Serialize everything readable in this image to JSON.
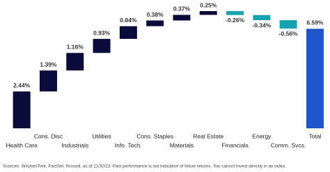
{
  "chart_data": {
    "type": "waterfall",
    "categories": [
      "Health Care",
      "Cons. Disc",
      "Industrials",
      "Utilities",
      "Info. Tech.",
      "Cons. Staples",
      "Materials",
      "Real Estate",
      "Financials",
      "Energy",
      "Comm. Svcs.",
      "Total"
    ],
    "values": [
      2.44,
      1.39,
      1.16,
      0.93,
      0.84,
      0.38,
      0.37,
      0.25,
      -0.26,
      -0.34,
      -0.56,
      6.59
    ],
    "value_labels": [
      "2.44%",
      "1.39%",
      "1.16%",
      "0.93%",
      "0.84%",
      "0.38%",
      "0.37%",
      "0.25%",
      "-0.26%",
      "-0.34%",
      "-0.56%",
      "6.59%"
    ],
    "colors": {
      "increase": "#0b0b3b",
      "decrease": "#17a2b1",
      "total": "#1f56c9"
    },
    "source": "Sources: WisdomTree, FactSet, Russell, as of 11/30/23. Past performance is not indicative of future returns. You cannot invest directly in an index."
  }
}
